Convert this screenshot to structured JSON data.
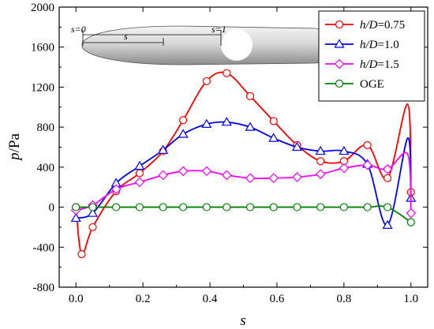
{
  "chart_data": {
    "type": "line",
    "xlabel": "s",
    "ylabel_var": "p",
    "ylabel_unit": "/Pa",
    "xlim": [
      -0.05,
      1.05
    ],
    "ylim": [
      -800,
      2000
    ],
    "xticks": [
      "0.0",
      "0.2",
      "0.4",
      "0.6",
      "0.8",
      "1.0"
    ],
    "xtick_values": [
      0,
      0.2,
      0.4,
      0.6,
      0.8,
      1.0
    ],
    "yticks": [
      "-800",
      "-400",
      "0",
      "400",
      "800",
      "1200",
      "1600",
      "2000"
    ],
    "ytick_values": [
      -800,
      -400,
      0,
      400,
      800,
      1200,
      1600,
      2000
    ],
    "grid": false,
    "legend_position": "top-right",
    "series": [
      {
        "name_var": "h/D",
        "name_val": "=0.75",
        "color": "#ff0000",
        "marker": "circle",
        "x": [
          0.0,
          0.017,
          0.05,
          0.12,
          0.19,
          0.26,
          0.32,
          0.39,
          0.45,
          0.52,
          0.59,
          0.66,
          0.73,
          0.8,
          0.87,
          0.93,
          1.0
        ],
        "y": [
          0,
          -470,
          -200,
          160,
          340,
          560,
          870,
          1260,
          1340,
          1110,
          860,
          620,
          460,
          460,
          620,
          290,
          150
        ],
        "peak_x": 0.99,
        "peak_y": 1030
      },
      {
        "name_var": "h/D",
        "name_val": "=1.0",
        "color": "#0000ff",
        "marker": "triangle",
        "x": [
          0.0,
          0.05,
          0.12,
          0.19,
          0.26,
          0.32,
          0.39,
          0.45,
          0.52,
          0.59,
          0.66,
          0.73,
          0.8,
          0.87,
          0.93,
          1.0
        ],
        "y": [
          -110,
          -60,
          240,
          410,
          570,
          730,
          830,
          850,
          800,
          690,
          600,
          560,
          560,
          430,
          -180,
          90
        ],
        "peak_x": 0.99,
        "peak_y": 690
      },
      {
        "name_var": "h/D",
        "name_val": "=1.5",
        "color": "#ff00ff",
        "marker": "diamond",
        "x": [
          0.0,
          0.05,
          0.12,
          0.19,
          0.26,
          0.32,
          0.39,
          0.45,
          0.52,
          0.59,
          0.66,
          0.73,
          0.8,
          0.87,
          0.93,
          1.0
        ],
        "y": [
          -30,
          20,
          180,
          250,
          320,
          360,
          360,
          320,
          290,
          290,
          300,
          330,
          390,
          420,
          380,
          -60
        ],
        "peak_x": 0.99,
        "peak_y": 530
      },
      {
        "name": "OGE",
        "color": "#008000",
        "marker": "circle",
        "x": [
          0.0,
          0.05,
          0.12,
          0.19,
          0.26,
          0.32,
          0.39,
          0.45,
          0.52,
          0.59,
          0.66,
          0.73,
          0.8,
          0.87,
          0.93,
          1.0
        ],
        "y": [
          0,
          0,
          0,
          0,
          0,
          0,
          0,
          0,
          0,
          0,
          0,
          0,
          0,
          0,
          0,
          -150
        ]
      }
    ],
    "inset": {
      "label_s0": "s=0",
      "label_s": "s",
      "label_s1": "s=1"
    }
  }
}
